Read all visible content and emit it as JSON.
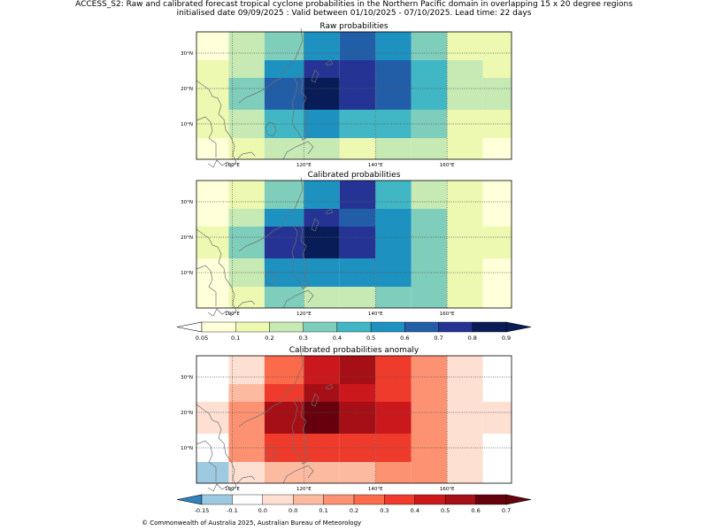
{
  "header": {
    "title_line1": "ACCESS_S2: Raw and calibrated forecast tropical cyclone probabilities in the Northern Pacific domain in overlapping 15 x 20 degree regions",
    "title_line2": "initialised date 09/09/2025 :  Valid between 01/10/2025 - 07/10/2025. Lead time: 22 days"
  },
  "footer": {
    "copyright": "© Commonwealth of Australia 2025, Australian Bureau of Meteorology"
  },
  "chart_data": [
    {
      "type": "heatmap",
      "title": "Raw probabilities",
      "x_ticks": [
        "100°E",
        "120°E",
        "140°E",
        "160°E"
      ],
      "y_ticks": [
        "30°N",
        "20°N",
        "10°N"
      ],
      "columns": 9,
      "rows": 5,
      "rows_top_to_bottom": [
        [
          0.05,
          0.2,
          0.35,
          0.55,
          0.65,
          0.55,
          0.35,
          0.15,
          0.15
        ],
        [
          0.1,
          0.25,
          0.55,
          0.75,
          0.75,
          0.65,
          0.45,
          0.25,
          0.15
        ],
        [
          0.15,
          0.35,
          0.65,
          0.9,
          0.75,
          0.65,
          0.45,
          0.25,
          0.25
        ],
        [
          0.15,
          0.25,
          0.45,
          0.55,
          0.45,
          0.45,
          0.35,
          0.15,
          0.15
        ],
        [
          0.05,
          0.15,
          0.25,
          0.25,
          0.15,
          0.25,
          0.25,
          0.15,
          0.05
        ]
      ]
    },
    {
      "type": "heatmap",
      "title": "Calibrated probabilities",
      "x_ticks": [
        "100°E",
        "120°E",
        "140°E",
        "160°E"
      ],
      "y_ticks": [
        "30°N",
        "20°N",
        "10°N"
      ],
      "columns": 9,
      "rows": 5,
      "rows_top_to_bottom": [
        [
          0.05,
          0.15,
          0.35,
          0.55,
          0.75,
          0.45,
          0.25,
          0.15,
          0.05
        ],
        [
          0.05,
          0.25,
          0.55,
          0.75,
          0.65,
          0.55,
          0.35,
          0.15,
          0.05
        ],
        [
          0.15,
          0.35,
          0.75,
          0.9,
          0.75,
          0.55,
          0.35,
          0.15,
          0.15
        ],
        [
          0.05,
          0.25,
          0.55,
          0.55,
          0.55,
          0.55,
          0.35,
          0.15,
          0.05
        ],
        [
          0.05,
          0.15,
          0.35,
          0.25,
          0.25,
          0.35,
          0.35,
          0.15,
          0.05
        ]
      ]
    },
    {
      "type": "heatmap",
      "title": "Calibrated probabilities anomaly",
      "x_ticks": [
        "100°E",
        "120°E",
        "140°E",
        "160°E"
      ],
      "y_ticks": [
        "30°N",
        "20°N",
        "10°N"
      ],
      "columns": 9,
      "rows": 5,
      "rows_top_to_bottom": [
        [
          -0.1,
          -0.05,
          0.25,
          0.45,
          0.55,
          0.35,
          0.15,
          -0.05,
          -0.1
        ],
        [
          -0.1,
          0.05,
          0.35,
          0.55,
          0.45,
          0.35,
          0.15,
          -0.05,
          -0.1
        ],
        [
          -0.05,
          0.15,
          0.55,
          0.65,
          0.55,
          0.45,
          0.15,
          -0.05,
          -0.05
        ],
        [
          -0.1,
          0.15,
          0.35,
          0.35,
          0.35,
          0.35,
          0.15,
          -0.05,
          -0.1
        ],
        [
          -0.15,
          -0.05,
          0.05,
          0.05,
          0.05,
          0.15,
          0.15,
          -0.05,
          -0.1
        ]
      ]
    }
  ],
  "colorbars": [
    {
      "labels": [
        "0.05",
        "0.1",
        "0.2",
        "0.3",
        "0.4",
        "0.5",
        "0.6",
        "0.7",
        "0.8",
        "0.9"
      ],
      "colors": [
        "#ffffd9",
        "#edf8b1",
        "#c7e9b4",
        "#7fcdbb",
        "#41b6c4",
        "#1d91c0",
        "#225ea8",
        "#253494",
        "#081d58"
      ],
      "under_color": "#ffffff",
      "over_color": "#081d58"
    },
    {
      "labels": [
        "-0.15",
        "-0.1",
        "0.0",
        "0.0",
        "0.1",
        "0.2",
        "0.3",
        "0.4",
        "0.5",
        "0.6",
        "0.7"
      ],
      "colors": [
        "#9ecae1",
        "#ffffff",
        "#fee0d2",
        "#fcbba1",
        "#fc9272",
        "#fb6a4a",
        "#ef3b2c",
        "#cb181d",
        "#a50f15",
        "#67000d"
      ],
      "under_color": "#3182bd",
      "over_color": "#67000d"
    }
  ],
  "scale": {
    "prob_levels": [
      0.05,
      0.1,
      0.2,
      0.3,
      0.4,
      0.5,
      0.6,
      0.7,
      0.8,
      0.9,
      1.0
    ],
    "anom_levels": [
      -0.15,
      -0.1,
      -0.05,
      0.0,
      0.1,
      0.2,
      0.3,
      0.4,
      0.5,
      0.6,
      0.7
    ]
  }
}
